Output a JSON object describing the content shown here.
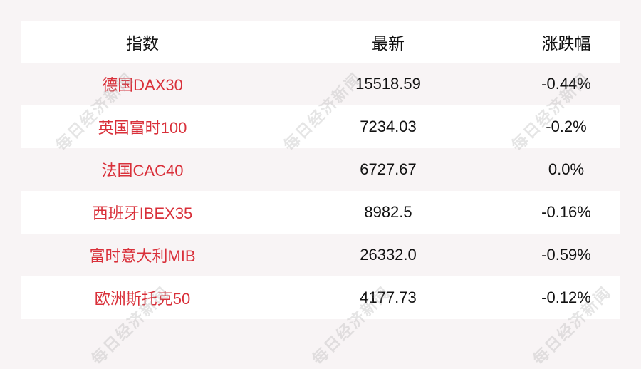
{
  "watermark": "每日经济新闻",
  "colors": {
    "name": "#d9303a",
    "text": "#111111",
    "stripe": "#f8f4f5"
  },
  "headers": [
    "指数",
    "最新",
    "涨跌幅"
  ],
  "rows": [
    {
      "name": "德国DAX30",
      "latest": "15518.59",
      "change": "-0.44%"
    },
    {
      "name": "英国富时100",
      "latest": "7234.03",
      "change": "-0.2%"
    },
    {
      "name": "法国CAC40",
      "latest": "6727.67",
      "change": "0.0%"
    },
    {
      "name": "西班牙IBEX35",
      "latest": "8982.5",
      "change": "-0.16%"
    },
    {
      "name": "富时意大利MIB",
      "latest": "26332.0",
      "change": "-0.59%"
    },
    {
      "name": "欧洲斯托克50",
      "latest": "4177.73",
      "change": "-0.12%"
    }
  ]
}
